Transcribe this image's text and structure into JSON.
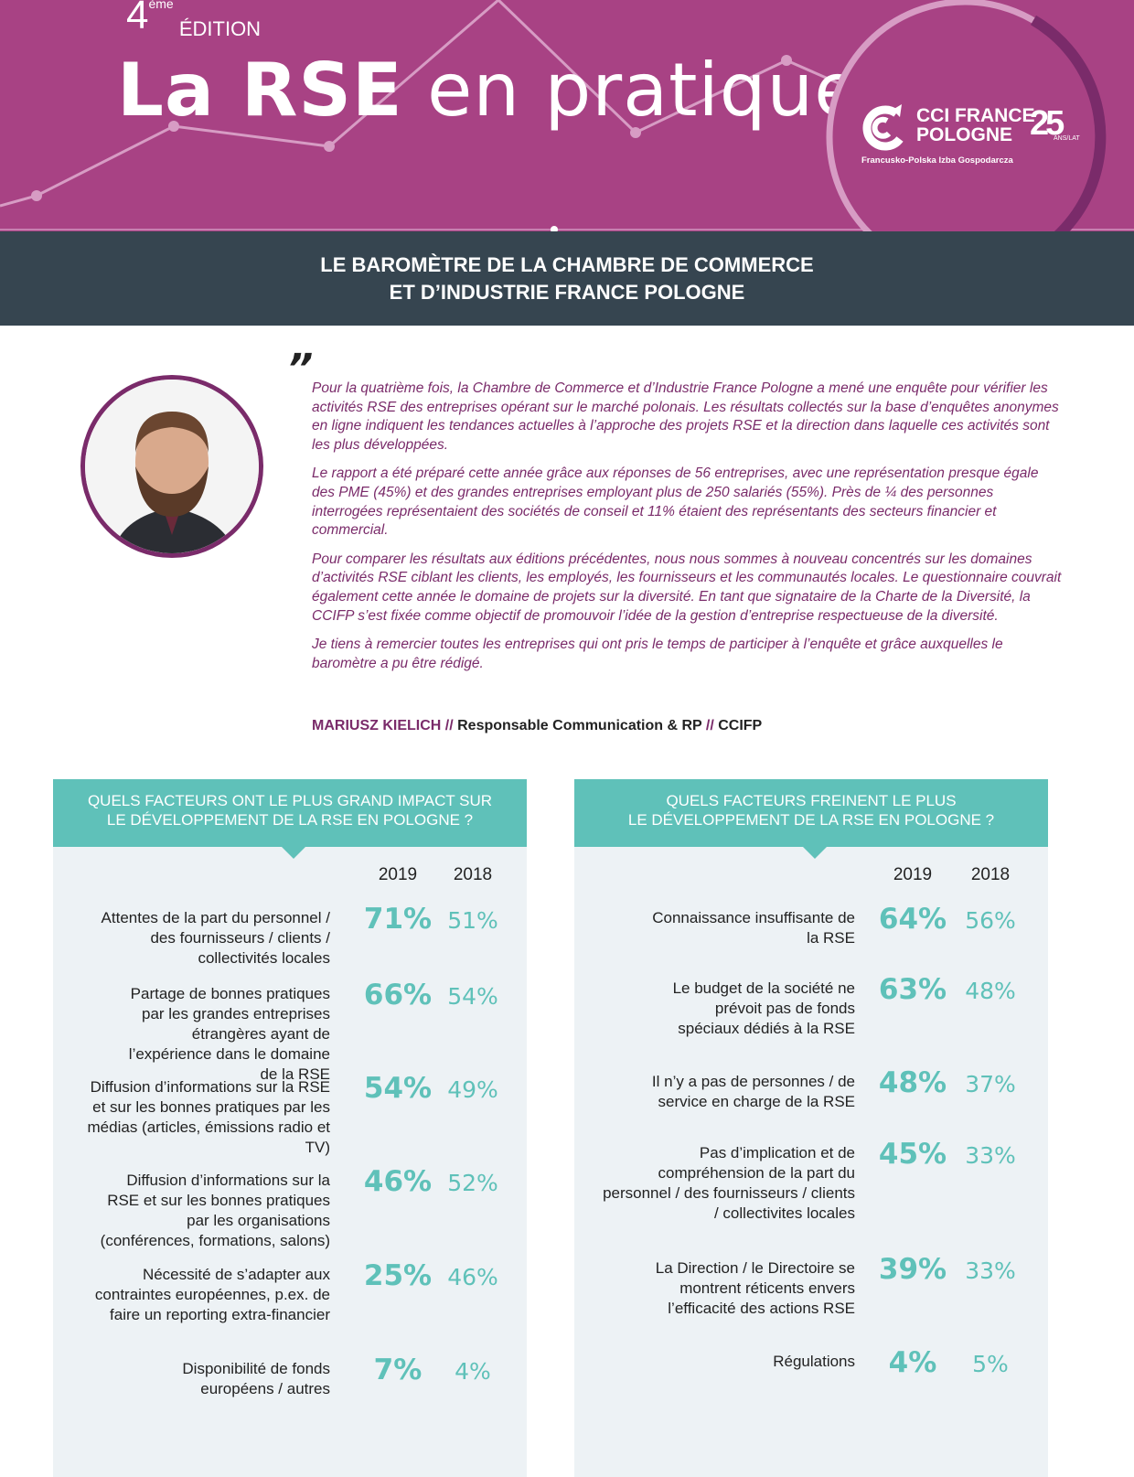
{
  "header": {
    "edition_num": "4",
    "edition_sup": "ème",
    "edition_label": "ÉDITION",
    "title_bold": "La RSE",
    "title_rest": "en pratique"
  },
  "logo": {
    "line1": "CCI FRANCE",
    "line2": "POLOGNE",
    "years": "25",
    "years_sub": "ANS/LAT",
    "subtitle": "Francusko-Polska Izba Gospodarcza"
  },
  "band": {
    "line1": "LE BAROMÈTRE DE LA CHAMBRE DE COMMERCE",
    "line2": "ET D’INDUSTRIE FRANCE POLOGNE"
  },
  "quote": {
    "mark": "”",
    "paragraphs": [
      "Pour la quatrième fois, la Chambre de Commerce et d’Industrie France Pologne a mené une enquête pour vérifier les activités RSE des entreprises opérant sur le marché polonais. Les résultats collectés sur la base d’enquêtes anonymes en ligne indiquent les tendances actuelles à l’approche des projets RSE et la direction dans laquelle ces activités sont les plus développées.",
      "Le rapport a été préparé cette année grâce aux réponses de 56 entreprises, avec une représentation presque égale des PME (45%) et des grandes entreprises employant plus de 250 salariés (55%). Près de ¼ des personnes interrogées représentaient des sociétés de conseil et 11% étaient des représentants des secteurs financier et commercial.",
      "Pour comparer les résultats aux éditions précédentes, nous nous sommes à nouveau concentrés sur les domaines d’activités RSE ciblant les clients, les employés, les fournisseurs et les communautés locales. Le questionnaire couvrait également cette année le domaine de projets sur la diversité. En tant que signataire de la Charte de la Diversité, la CCIFP s’est fixée comme objectif de promouvoir l’idée de la gestion d’entreprise respectueuse de la diversité.",
      "Je tiens à remercier toutes les entreprises qui ont pris le temps de participer à l’enquête et grâce auxquelles le baromètre a pu être rédigé."
    ],
    "author": "MARIUSZ KIELICH",
    "sep1": " // ",
    "role": "Responsable Communication & RP",
    "sep2": " // ",
    "org": "CCIFP"
  },
  "panels": [
    {
      "title1": "QUELS FACTEURS ONT LE PLUS GRAND IMPACT SUR",
      "title2": "LE DÉVELOPPEMENT DE LA RSE EN POLOGNE ?",
      "col1": "2019",
      "col2": "2018",
      "rows": [
        {
          "label": "Attentes de la part du personnel / des fournisseurs / clients / collectivités locales",
          "v2019": "71%",
          "v2018": "51%"
        },
        {
          "label": "Partage de bonnes pratiques par les grandes entreprises étrangères ayant de l’expérience dans le domaine de la RSE",
          "v2019": "66%",
          "v2018": "54%"
        },
        {
          "label": "Diffusion d’informations sur la RSE et sur les bonnes pratiques par les médias (articles, émissions radio et TV)",
          "v2019": "54%",
          "v2018": "49%"
        },
        {
          "label": "Diffusion d’informations sur la RSE et sur les bonnes pratiques par les organisations (conférences, formations, salons)",
          "v2019": "46%",
          "v2018": "52%"
        },
        {
          "label": "Nécessité de s’adapter aux contraintes européennes, p.ex. de faire un reporting extra-financier",
          "v2019": "25%",
          "v2018": "46%"
        },
        {
          "label": "Disponibilité de fonds européens / autres",
          "v2019": "7%",
          "v2018": "4%"
        }
      ]
    },
    {
      "title1": "QUELS FACTEURS FREINENT LE PLUS",
      "title2": "LE DÉVELOPPEMENT DE LA RSE EN POLOGNE ?",
      "col1": "2019",
      "col2": "2018",
      "rows": [
        {
          "label": "Connaissance insuffisante de la RSE",
          "v2019": "64%",
          "v2018": "56%"
        },
        {
          "label": "Le budget de la société ne prévoit pas de fonds spéciaux dédiés à la RSE",
          "v2019": "63%",
          "v2018": "48%"
        },
        {
          "label": "Il n’y a pas de personnes / de service en charge de la RSE",
          "v2019": "48%",
          "v2018": "37%"
        },
        {
          "label": "Pas d’implication et de compréhension de la part du personnel / des fournisseurs / clients / collectivites locales",
          "v2019": "45%",
          "v2018": "33%"
        },
        {
          "label": "La Direction / le Directoire se montrent réticents envers l’efficacité des actions RSE",
          "v2019": "39%",
          "v2018": "33%"
        },
        {
          "label": "Régulations",
          "v2019": "4%",
          "v2018": "5%"
        }
      ]
    }
  ],
  "colors": {
    "magenta": "#a84284",
    "dark": "#364550",
    "teal": "#5fc1b9",
    "purple": "#7a2b6a",
    "panel_bg": "#edf2f5"
  }
}
